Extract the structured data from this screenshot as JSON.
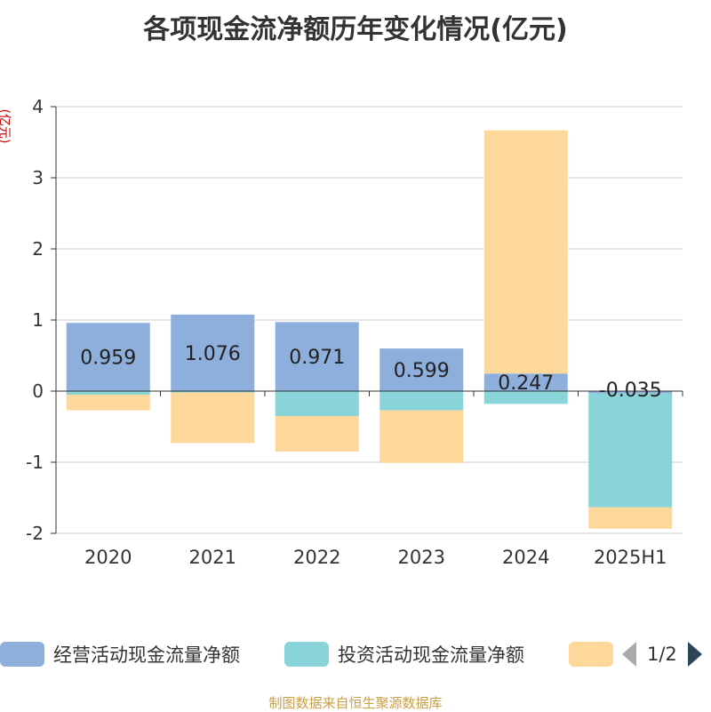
{
  "chart_data": {
    "type": "bar",
    "stacked": true,
    "title": "各项现金流净额历年变化情况(亿元)",
    "ylabel": "(亿元)",
    "categories": [
      "2020",
      "2021",
      "2022",
      "2023",
      "2024",
      "2025H1"
    ],
    "ylim": [
      -2,
      4
    ],
    "yticks": [
      "4",
      "3",
      "2",
      "1",
      "0",
      "-1",
      "-2"
    ],
    "grid": true,
    "legend_position": "bottom",
    "series": [
      {
        "name": "经营活动现金流量净额",
        "color": "#8eaedb",
        "values": [
          0.959,
          1.076,
          0.971,
          0.599,
          0.247,
          -0.035
        ],
        "labels": [
          "0.959",
          "1.076",
          "0.971",
          "0.599",
          "0.247",
          "-0.035"
        ]
      },
      {
        "name": "投资活动现金流量净额",
        "color": "#88d4d8",
        "values": [
          -0.05,
          -0.02,
          -0.35,
          -0.27,
          -0.18,
          -1.6
        ]
      },
      {
        "color": "#fdd89a",
        "values": [
          -0.22,
          -0.71,
          -0.5,
          -0.74,
          3.42,
          -0.3
        ]
      }
    ]
  },
  "legend": {
    "page": "1/2"
  },
  "footer": "制图数据来自恒生聚源数据库"
}
